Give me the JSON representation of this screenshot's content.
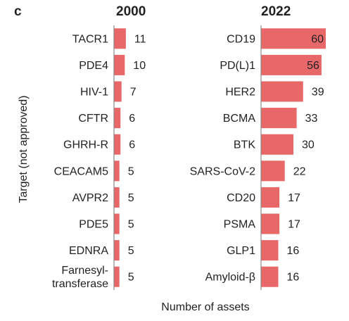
{
  "panel_label": "c",
  "xlabel": "Number of assets",
  "ylabel": "Target (not approved)",
  "colors": {
    "bar": "#e8686a",
    "axis": "#888888"
  },
  "chart_data": [
    {
      "type": "bar",
      "orientation": "horizontal",
      "title": "2000",
      "categories": [
        "TACR1",
        "PDE4",
        "HIV-1",
        "CFTR",
        "GHRH-R",
        "CEACAM5",
        "AVPR2",
        "PDE5",
        "EDNRA",
        "Farnesyl-\ntransferase"
      ],
      "values": [
        11,
        10,
        7,
        6,
        6,
        5,
        5,
        5,
        5,
        5
      ],
      "xlim": [
        0,
        60
      ]
    },
    {
      "type": "bar",
      "orientation": "horizontal",
      "title": "2022",
      "categories": [
        "CD19",
        "PD(L)1",
        "HER2",
        "BCMA",
        "BTK",
        "SARS-CoV-2",
        "CD20",
        "PSMA",
        "GLP1",
        "Amyloid-β"
      ],
      "values": [
        60,
        56,
        39,
        33,
        30,
        22,
        17,
        17,
        16,
        16
      ],
      "xlim": [
        0,
        60
      ]
    }
  ]
}
